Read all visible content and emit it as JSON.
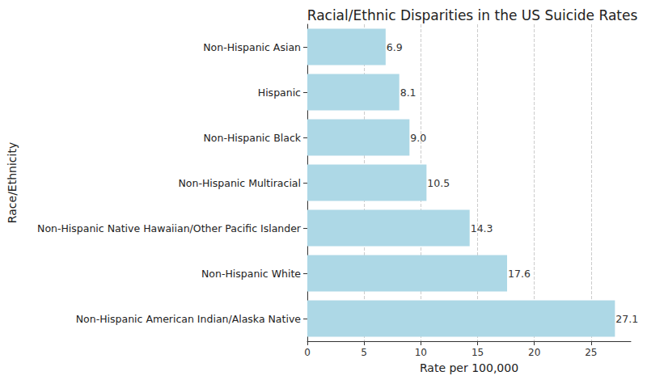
{
  "chart_data": {
    "type": "bar",
    "orientation": "horizontal",
    "title": "Racial/Ethnic Disparities in the US Suicide Rates",
    "x_label": "Rate per 100,000",
    "y_label": "Race/Ethnicity",
    "categories": [
      "Non-Hispanic American Indian/Alaska Native",
      "Non-Hispanic White",
      "Non-Hispanic Native Hawaiian/Other Pacific Islander",
      "Non-Hispanic Multiracial",
      "Non-Hispanic Black",
      "Hispanic",
      "Non-Hispanic Asian"
    ],
    "values": [
      27.1,
      17.6,
      14.3,
      10.5,
      9.0,
      8.1,
      6.9
    ],
    "value_labels": [
      "27.1",
      "17.6",
      "14.3",
      "10.5",
      "9.0",
      "8.1",
      "6.9"
    ],
    "color": "#add8e6",
    "xlim": [
      0,
      28.5
    ],
    "xticks": [
      0,
      5,
      10,
      15,
      20,
      25
    ],
    "grid": true,
    "data_labels": true
  }
}
